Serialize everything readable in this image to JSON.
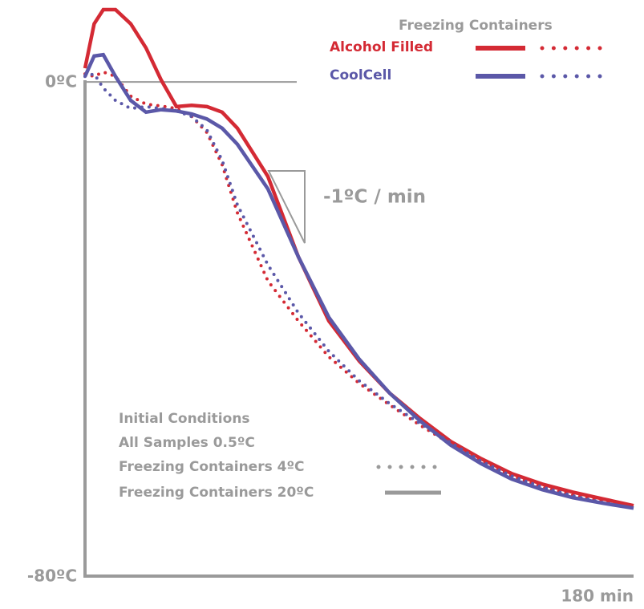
{
  "chart_data": {
    "type": "line",
    "x": [
      0,
      3,
      6,
      10,
      15,
      20,
      25,
      30,
      35,
      40,
      45,
      50,
      60,
      70,
      80,
      90,
      100,
      110,
      120,
      130,
      140,
      150,
      160,
      170,
      180
    ],
    "legend_title": "Freezing Containers",
    "series": [
      {
        "name": "Alcohol Filled",
        "color": "#d42a34",
        "values": [
          2.2,
          9.4,
          11.7,
          11.7,
          9.4,
          5.5,
          0.3,
          -4.0,
          -3.8,
          -4.0,
          -4.9,
          -7.5,
          -15.3,
          -28.3,
          -38.7,
          -45.2,
          -50.4,
          -54.5,
          -58.2,
          -61.0,
          -63.4,
          -65.1,
          -66.4,
          -67.5,
          -68.6
        ],
        "values_4c": [
          1.3,
          0.9,
          1.6,
          0.9,
          -2.3,
          -3.6,
          -3.9,
          -4.3,
          -5.6,
          -8.2,
          -13.4,
          -21.2,
          -32.2,
          -38.7,
          -44.5,
          -48.8,
          -52.3,
          -55.6,
          -58.6,
          -61.4,
          -63.8,
          -65.6,
          -66.9,
          -67.9,
          -68.6
        ]
      },
      {
        "name": "CoolCell",
        "color": "#5b58a8",
        "values": [
          0.9,
          4.2,
          4.4,
          0.9,
          -3.0,
          -4.9,
          -4.5,
          -4.7,
          -5.2,
          -6.0,
          -7.5,
          -10.1,
          -17.3,
          -28.3,
          -38.1,
          -44.9,
          -50.4,
          -54.9,
          -58.8,
          -61.8,
          -64.3,
          -66.0,
          -67.3,
          -68.2,
          -69.0
        ],
        "values_4c": [
          0.9,
          1.3,
          -1.0,
          -3.0,
          -4.3,
          -4.0,
          -4.3,
          -4.7,
          -5.6,
          -7.8,
          -12.7,
          -19.9,
          -29.6,
          -37.4,
          -43.6,
          -48.4,
          -52.1,
          -55.3,
          -58.4,
          -61.4,
          -63.8,
          -65.6,
          -67.0,
          -68.1,
          -69.0
        ]
      }
    ],
    "conditions": {
      "title": "Initial Conditions",
      "note": "All Samples 0.5ºC",
      "dotted": "Freezing Containers 4ºC",
      "solid": "Freezing Containers 20ºC"
    },
    "annotation": "-1ºC / min",
    "xlim": [
      0,
      180
    ],
    "xticks": [
      {
        "value": 180,
        "label": "180 min"
      }
    ],
    "ylim": [
      -80,
      13
    ],
    "yticks": [
      {
        "value": 0,
        "label": "0ºC"
      },
      {
        "value": -80,
        "label": "-80ºC"
      }
    ]
  }
}
